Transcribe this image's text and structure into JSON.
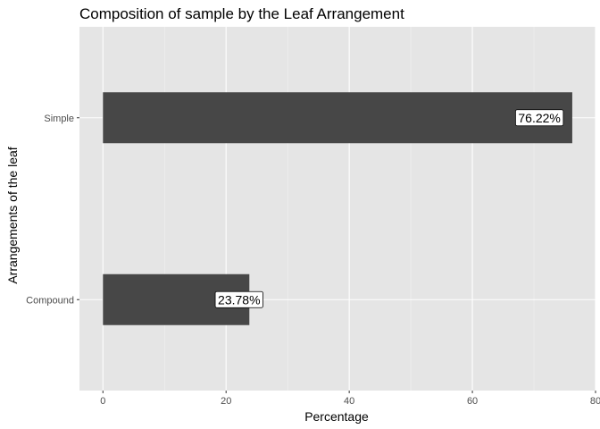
{
  "chart_data": {
    "type": "bar",
    "orientation": "horizontal",
    "title": "Composition of sample by the Leaf Arrangement",
    "xlabel": "Percentage",
    "ylabel": "Arrangements of the leaf",
    "categories": [
      "Simple",
      "Compound"
    ],
    "values": [
      76.22,
      23.78
    ],
    "data_labels": [
      "76.22%",
      "23.78%"
    ],
    "xlim": [
      -3.81,
      80
    ],
    "xticks": [
      0,
      20,
      40,
      60,
      80
    ],
    "xtick_labels": [
      "0",
      "20",
      "40",
      "60",
      "80"
    ],
    "grid": true,
    "legend": "none",
    "colors": {
      "bar": "#474747",
      "panel": "#e5e5e5",
      "grid_major": "#ffffff",
      "grid_minor": "#f2f2f2",
      "tick_text": "#4d4d4d"
    }
  }
}
